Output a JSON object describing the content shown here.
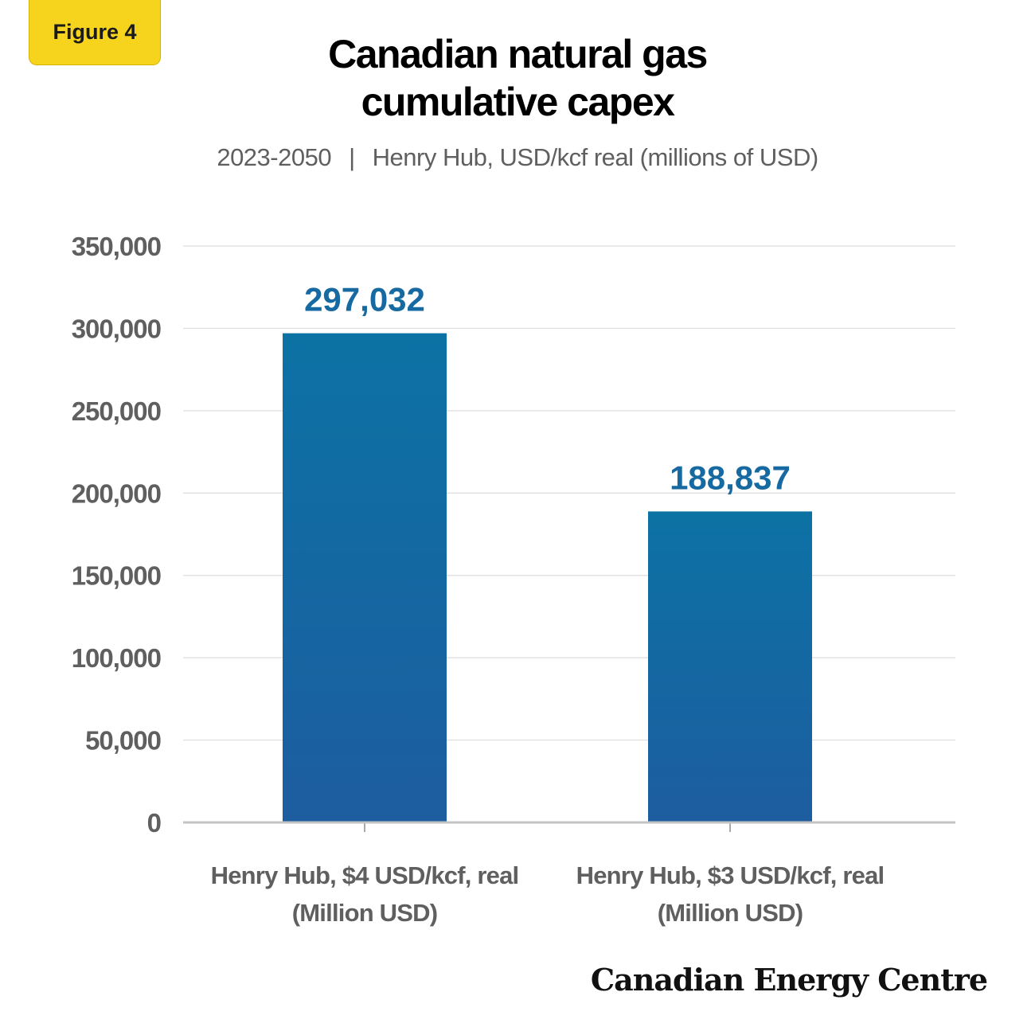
{
  "badge": "Figure 4",
  "title_line1": "Canadian natural gas",
  "title_line2": "cumulative capex",
  "subtitle_period": "2023-2050",
  "subtitle_sep": "|",
  "subtitle_desc": "Henry Hub, USD/kcf real (millions of USD)",
  "brand": "Canadian Energy Centre",
  "colors": {
    "bar_top": "#0c72a4",
    "bar_bottom": "#1d5da0",
    "value_label": "#176aa1",
    "tick": "#5f5f5f",
    "grid": "#dddddd"
  },
  "chart_data": {
    "type": "bar",
    "categories": [
      [
        "Henry Hub, $4 USD/kcf, real",
        "(Million USD)"
      ],
      [
        "Henry Hub, $3 USD/kcf, real",
        "(Million USD)"
      ]
    ],
    "values": [
      297032,
      188837
    ],
    "value_labels": [
      "297,032",
      "188,837"
    ],
    "ylim": [
      0,
      350000
    ],
    "yticks": [
      0,
      50000,
      100000,
      150000,
      200000,
      250000,
      300000,
      350000
    ],
    "ytick_labels": [
      "0",
      "50,000",
      "100,000",
      "150,000",
      "200,000",
      "250,000",
      "300,000",
      "350,000"
    ],
    "grid": true,
    "xlabel": "",
    "ylabel": ""
  }
}
